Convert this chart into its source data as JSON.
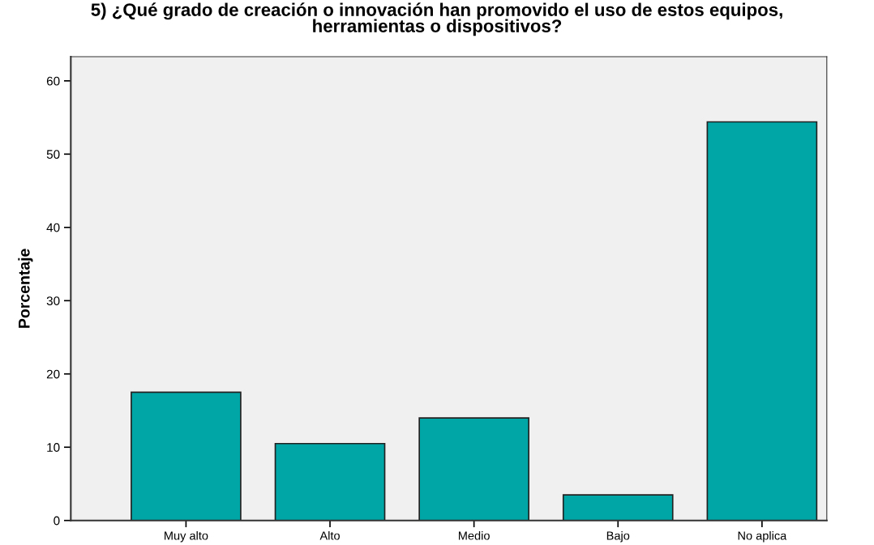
{
  "chart_data": {
    "type": "bar",
    "title": "5) ¿Qué grado de creación o innovación han promovido el uso de estos equipos,\nherramientas o dispositivos?",
    "ylabel": "Porcentaje",
    "categories": [
      "Muy alto",
      "Alto",
      "Medio",
      "Bajo",
      "No aplica"
    ],
    "values": [
      17.5,
      10.5,
      14.0,
      3.5,
      54.4
    ],
    "color": "#00a6a6",
    "ylim": [
      0,
      63.3
    ],
    "yticks": [
      0,
      10,
      20,
      30,
      40,
      50,
      60
    ],
    "grid": false
  }
}
